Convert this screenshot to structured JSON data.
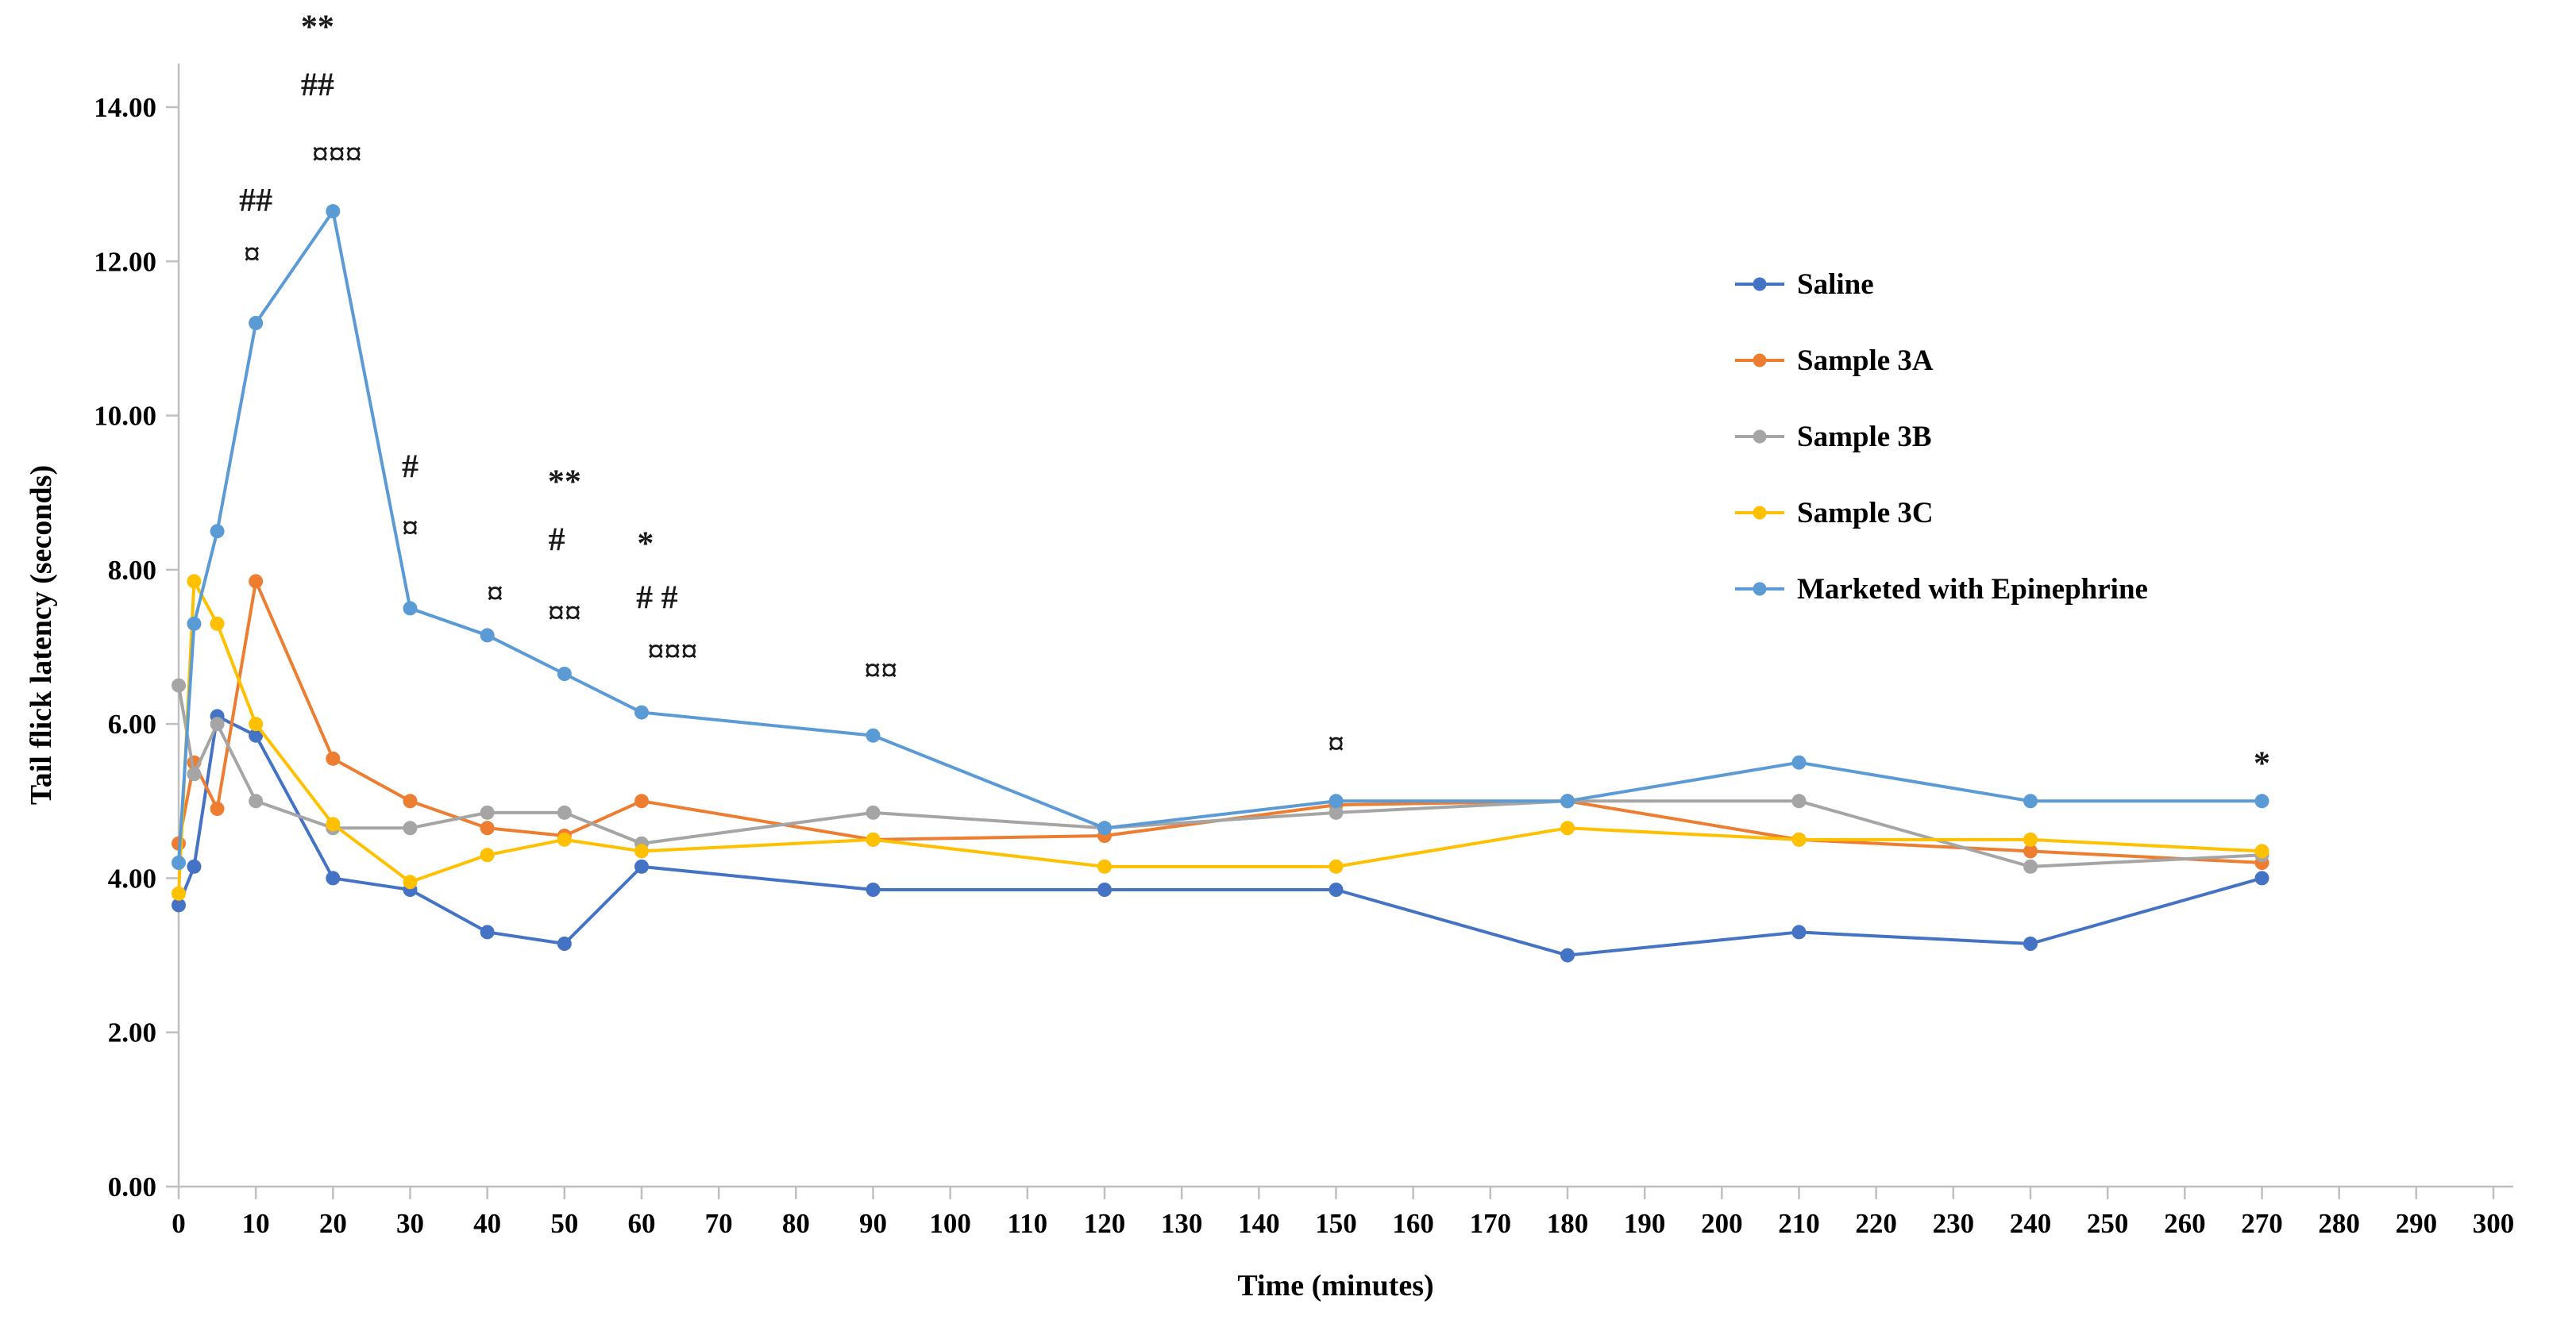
{
  "chart_data": {
    "type": "line",
    "title": "",
    "xlabel": "Time (minutes)",
    "ylabel": "Tail flick latency (seconds)",
    "xlim": [
      0,
      300
    ],
    "ylim": [
      0,
      14
    ],
    "x_tick_step": 10,
    "y_tick_step": 2,
    "y_tick_decimals": 2,
    "grid": false,
    "legend_position": "right",
    "axis_color": "#BFBFBF",
    "x": [
      0,
      2,
      5,
      10,
      20,
      30,
      40,
      50,
      60,
      90,
      120,
      150,
      180,
      210,
      240,
      270
    ],
    "series": [
      {
        "name": "Saline",
        "color": "#4472C4",
        "values": [
          3.65,
          4.15,
          6.1,
          5.85,
          4.0,
          3.85,
          3.3,
          3.15,
          4.15,
          3.85,
          3.85,
          3.85,
          3.0,
          3.3,
          3.15,
          4.0
        ]
      },
      {
        "name": "Sample 3A",
        "color": "#ED7D31",
        "values": [
          4.45,
          5.5,
          4.9,
          7.85,
          5.55,
          5.0,
          4.65,
          4.55,
          5.0,
          4.5,
          4.55,
          4.95,
          5.0,
          4.5,
          4.35,
          4.2
        ]
      },
      {
        "name": "Sample 3B",
        "color": "#A5A5A5",
        "values": [
          6.5,
          5.35,
          6.0,
          5.0,
          4.65,
          4.65,
          4.85,
          4.85,
          4.45,
          4.85,
          4.65,
          4.85,
          5.0,
          5.0,
          4.15,
          4.3
        ]
      },
      {
        "name": "Sample 3C",
        "color": "#FFC000",
        "values": [
          3.8,
          7.85,
          7.3,
          6.0,
          4.7,
          3.95,
          4.3,
          4.5,
          4.35,
          4.5,
          4.15,
          4.15,
          4.65,
          4.5,
          4.5,
          4.35
        ]
      },
      {
        "name": "Marketed with Epinephrine",
        "color": "#5B9BD5",
        "values": [
          4.2,
          7.3,
          8.5,
          11.2,
          12.65,
          7.5,
          7.15,
          6.65,
          6.15,
          5.85,
          4.65,
          5.0,
          5.0,
          5.5,
          5.0,
          5.0
        ]
      }
    ],
    "annotations": [
      {
        "x": 18,
        "y": 14.9,
        "text": "**"
      },
      {
        "x": 18,
        "y": 14.15,
        "text": "##"
      },
      {
        "x": 20.5,
        "y": 13.25,
        "text": "¤¤¤"
      },
      {
        "x": 10,
        "y": 12.65,
        "text": "##"
      },
      {
        "x": 9.5,
        "y": 11.95,
        "text": "¤"
      },
      {
        "x": 30,
        "y": 9.2,
        "text": "#"
      },
      {
        "x": 30,
        "y": 8.4,
        "text": "¤"
      },
      {
        "x": 50,
        "y": 9.0,
        "text": "**"
      },
      {
        "x": 49,
        "y": 8.25,
        "text": "#"
      },
      {
        "x": 50,
        "y": 7.3,
        "text": "¤¤"
      },
      {
        "x": 41,
        "y": 7.55,
        "text": "¤"
      },
      {
        "x": 60.5,
        "y": 8.2,
        "text": "*"
      },
      {
        "x": 62,
        "y": 7.5,
        "text": "# #"
      },
      {
        "x": 64,
        "y": 6.8,
        "text": "¤¤¤"
      },
      {
        "x": 91,
        "y": 6.55,
        "text": "¤¤"
      },
      {
        "x": 150,
        "y": 5.6,
        "text": "¤"
      },
      {
        "x": 270,
        "y": 5.35,
        "text": "*"
      }
    ]
  }
}
